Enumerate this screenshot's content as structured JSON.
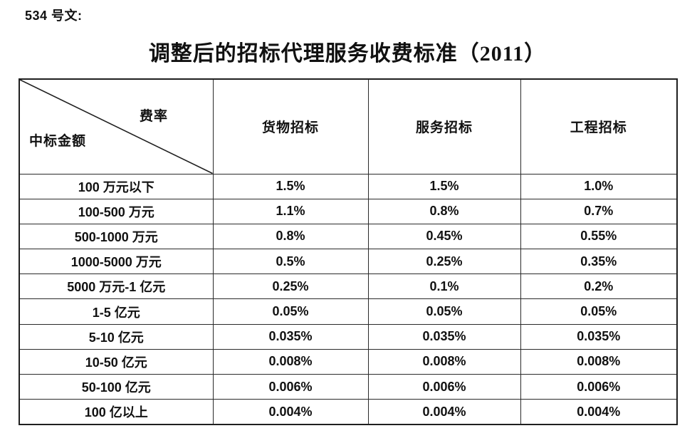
{
  "doc_label": "534 号文:",
  "title": "调整后的招标代理服务收费标准（2011）",
  "table": {
    "corner": {
      "top_right_label": "费率",
      "bottom_left_label": "中标金额"
    },
    "columns": [
      "货物招标",
      "服务招标",
      "工程招标"
    ],
    "rows": [
      {
        "label": "100 万元以下",
        "values": [
          "1.5%",
          "1.5%",
          "1.0%"
        ]
      },
      {
        "label": "100-500 万元",
        "values": [
          "1.1%",
          "0.8%",
          "0.7%"
        ]
      },
      {
        "label": "500-1000 万元",
        "values": [
          "0.8%",
          "0.45%",
          "0.55%"
        ]
      },
      {
        "label": "1000-5000 万元",
        "values": [
          "0.5%",
          "0.25%",
          "0.35%"
        ]
      },
      {
        "label": "5000 万元-1 亿元",
        "values": [
          "0.25%",
          "0.1%",
          "0.2%"
        ]
      },
      {
        "label": "1-5 亿元",
        "values": [
          "0.05%",
          "0.05%",
          "0.05%"
        ]
      },
      {
        "label": "5-10 亿元",
        "values": [
          "0.035%",
          "0.035%",
          "0.035%"
        ]
      },
      {
        "label": "10-50 亿元",
        "values": [
          "0.008%",
          "0.008%",
          "0.008%"
        ]
      },
      {
        "label": "50-100 亿元",
        "values": [
          "0.006%",
          "0.006%",
          "0.006%"
        ]
      },
      {
        "label": "100 亿以上",
        "values": [
          "0.004%",
          "0.004%",
          "0.004%"
        ]
      }
    ],
    "colors": {
      "border": "#2a2a2a",
      "text": "#111111",
      "background": "#ffffff"
    }
  }
}
